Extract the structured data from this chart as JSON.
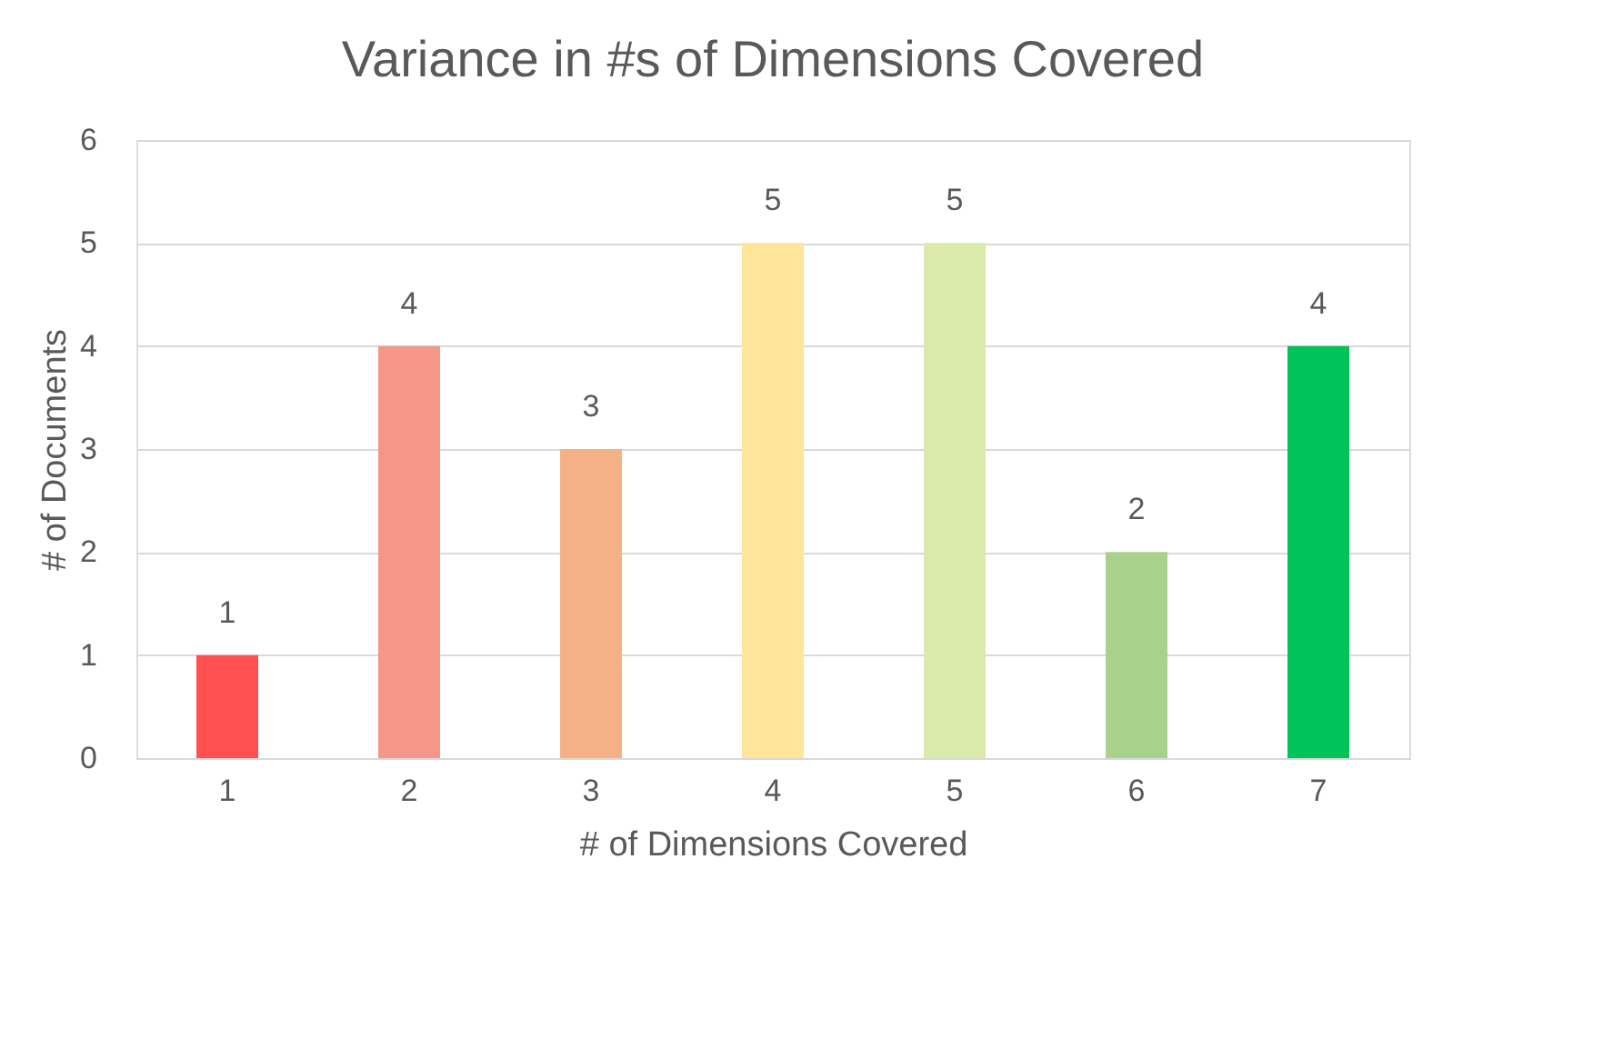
{
  "chart_data": {
    "type": "bar",
    "title": "Variance in #s of Dimensions Covered",
    "xlabel": "# of Dimensions Covered",
    "ylabel": "# of Documents",
    "categories": [
      "1",
      "2",
      "3",
      "4",
      "5",
      "6",
      "7"
    ],
    "values": [
      1,
      4,
      3,
      5,
      5,
      2,
      4
    ],
    "colors": [
      "#ff5050",
      "#f4978a",
      "#f5b185",
      "#ffe599",
      "#d9eaaa",
      "#a9d18e",
      "#00c35a"
    ],
    "ylim": [
      0,
      6
    ],
    "yticks": [
      0,
      1,
      2,
      3,
      4,
      5,
      6
    ],
    "grid": "y",
    "data_labels": true
  }
}
